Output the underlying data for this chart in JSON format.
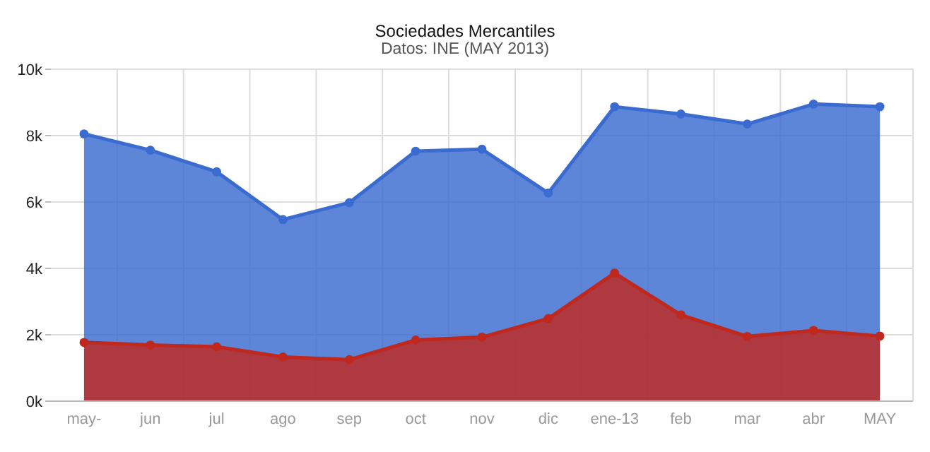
{
  "chart_data": {
    "type": "area",
    "title": "Sociedades Mercantiles",
    "subtitle": "Datos: INE (MAY 2013)",
    "categories": [
      "may-",
      "jun",
      "jul",
      "ago",
      "sep",
      "oct",
      "nov",
      "dic",
      "ene-13",
      "feb",
      "mar",
      "abr",
      "MAY"
    ],
    "series": [
      {
        "color": "#3a6bd0",
        "values": [
          8050,
          7560,
          6910,
          5470,
          5980,
          7530,
          7590,
          6270,
          8870,
          8650,
          8350,
          8950,
          8870
        ]
      },
      {
        "color": "#c0281e",
        "values": [
          1770,
          1690,
          1640,
          1330,
          1250,
          1840,
          1930,
          2490,
          3860,
          2600,
          1950,
          2130,
          1960
        ]
      }
    ],
    "ylim": [
      0,
      10000
    ],
    "yticks": [
      {
        "value": 0,
        "label": "0k"
      },
      {
        "value": 2000,
        "label": "2k"
      },
      {
        "value": 4000,
        "label": "4k"
      },
      {
        "value": 6000,
        "label": "6k"
      },
      {
        "value": 8000,
        "label": "8k"
      },
      {
        "value": 10000,
        "label": "10k"
      }
    ],
    "grid": true,
    "marker": "circle"
  }
}
